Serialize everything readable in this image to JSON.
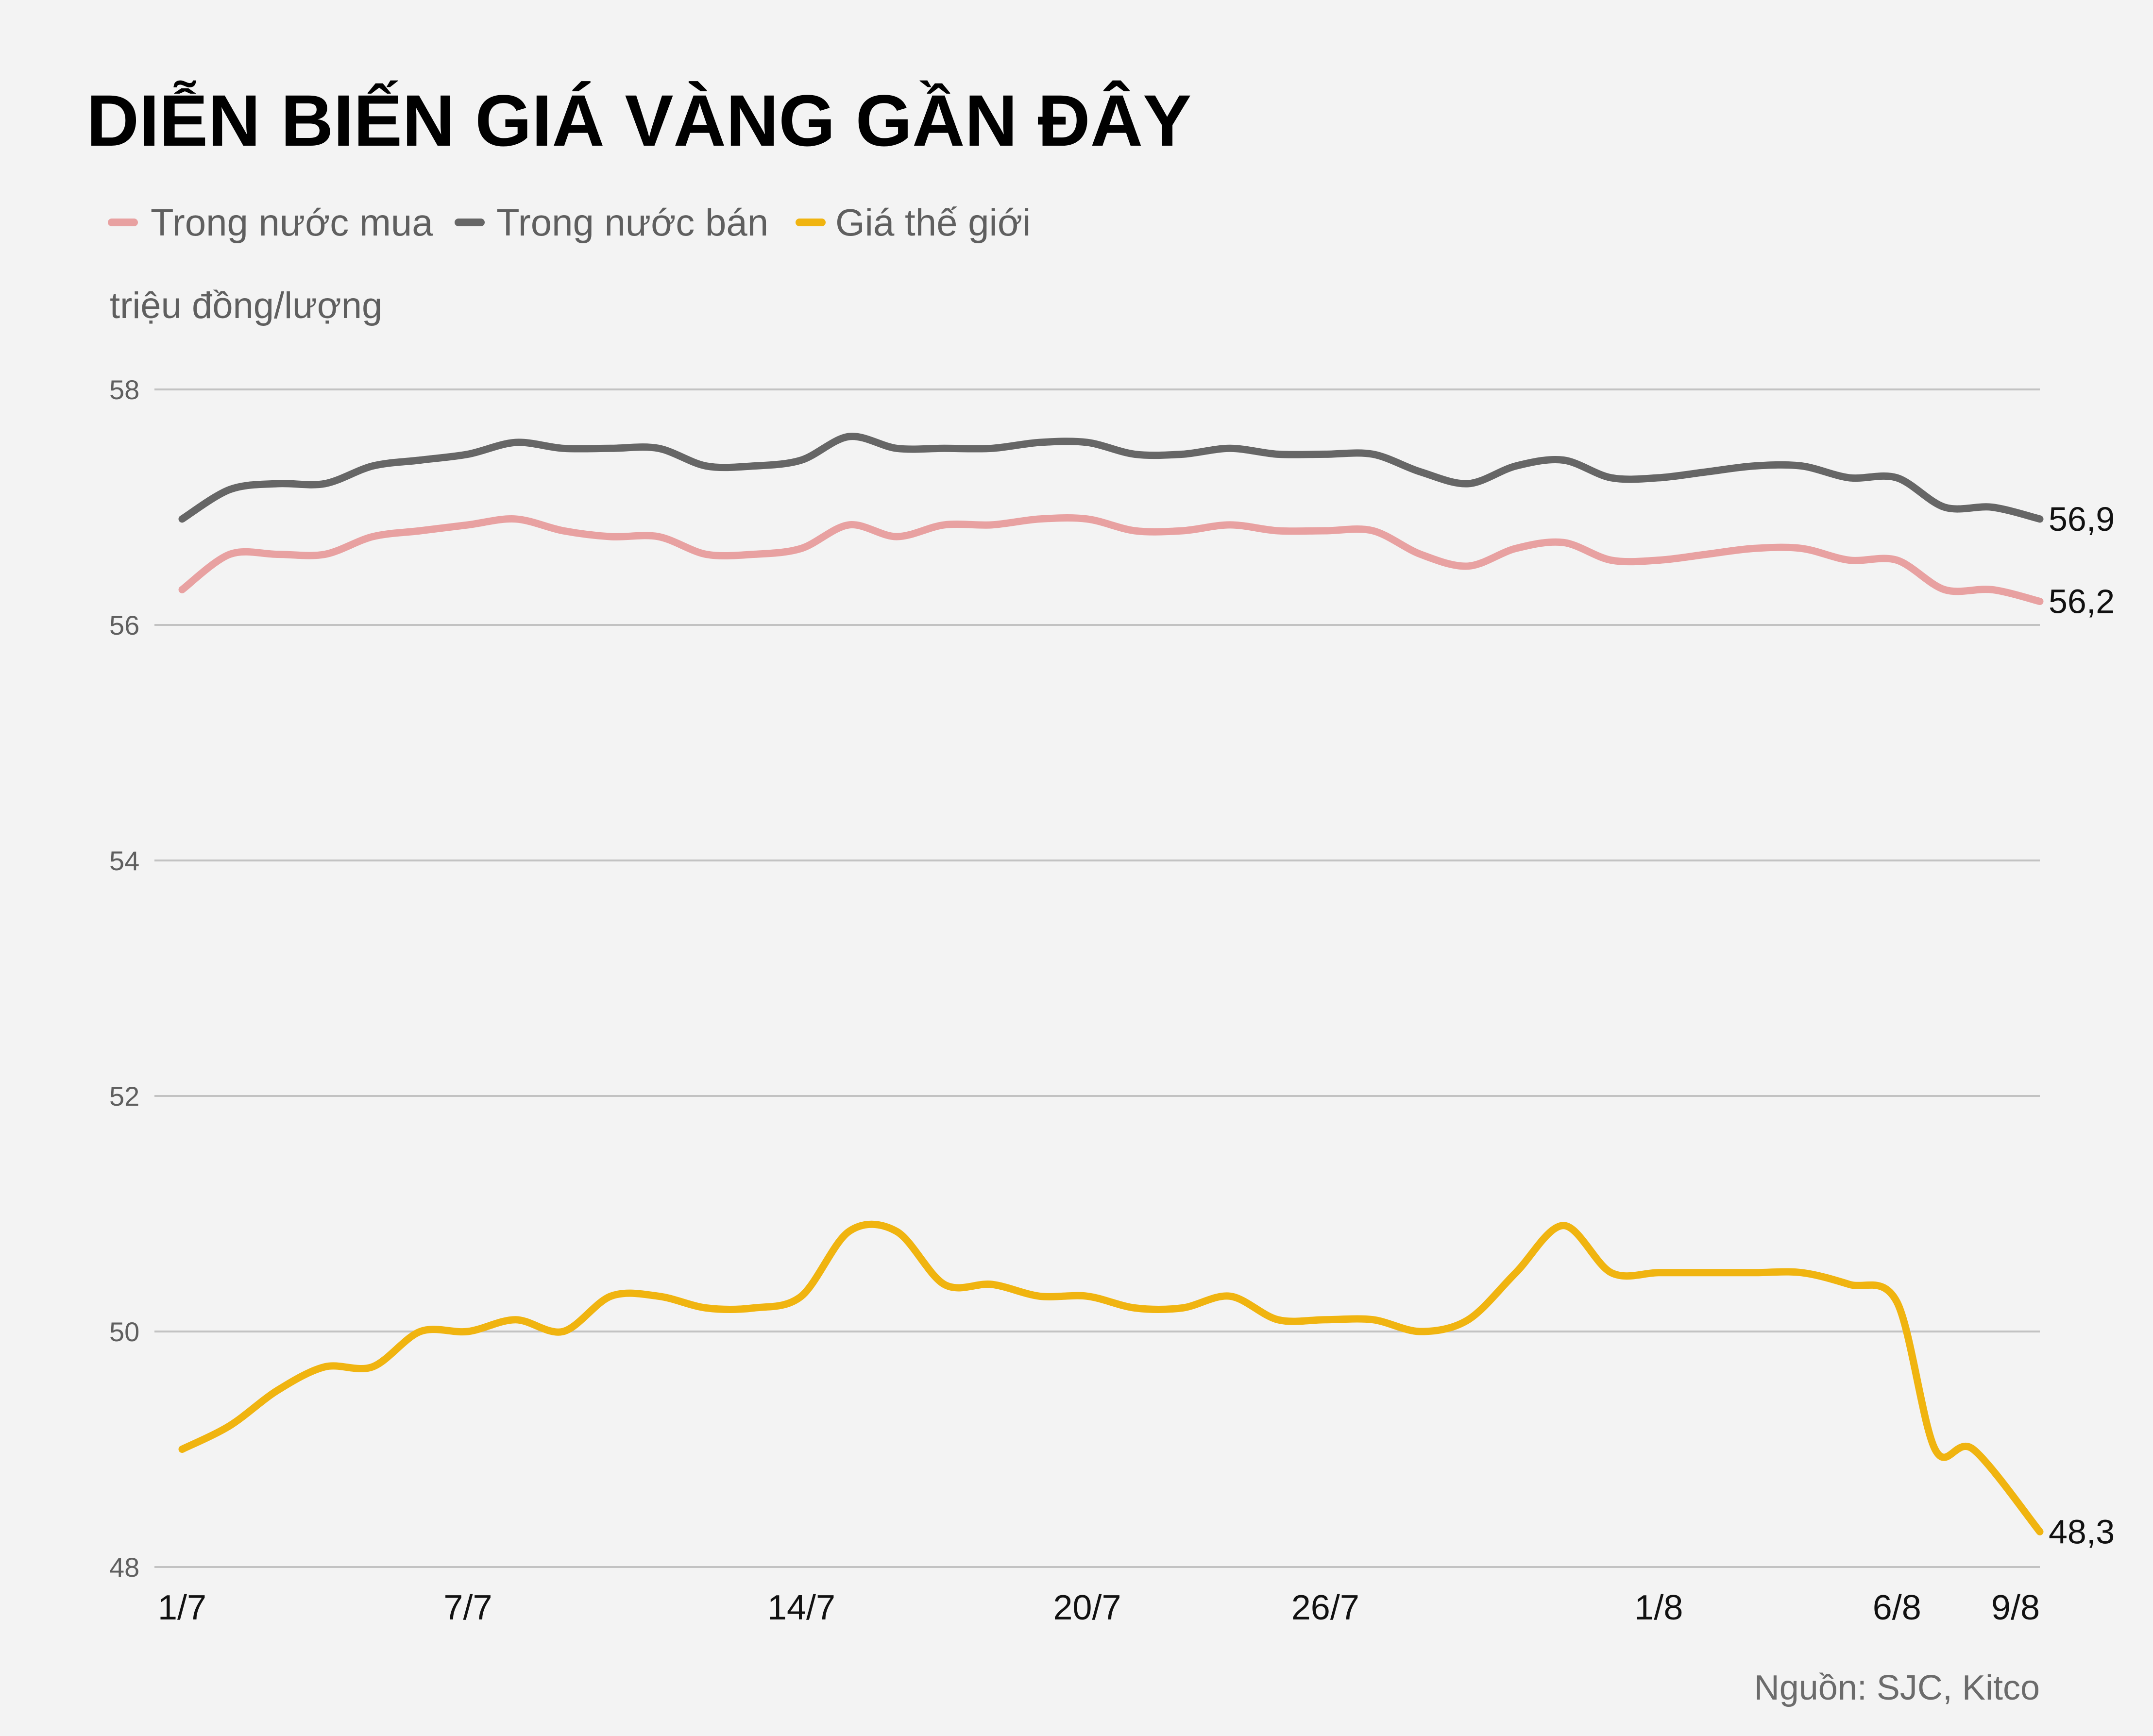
{
  "chart_data": {
    "type": "line",
    "title": "DIỄN BIẾN GIÁ VÀNG GẦN ĐÂY",
    "ylabel": "triệu đồng/lượng",
    "ylim": [
      48,
      58
    ],
    "yticks": [
      "48",
      "50",
      "52",
      "54",
      "56",
      "58"
    ],
    "ytick_values": [
      48,
      50,
      52,
      54,
      56,
      58
    ],
    "grid": true,
    "legend_position": "top-left",
    "x_day_range": [
      0,
      39
    ],
    "xticks": [
      {
        "label": "1/7",
        "day": 0
      },
      {
        "label": "7/7",
        "day": 6
      },
      {
        "label": "14/7",
        "day": 13
      },
      {
        "label": "20/7",
        "day": 19
      },
      {
        "label": "26/7",
        "day": 24
      },
      {
        "label": "1/8",
        "day": 31
      },
      {
        "label": "6/8",
        "day": 36
      },
      {
        "label": "9/8",
        "day": 39
      }
    ],
    "series": [
      {
        "name": "Trong nước mua",
        "color": "#e8a1a1",
        "days": [
          0,
          1,
          2,
          3,
          4,
          5,
          6,
          7,
          8,
          9,
          10,
          11,
          12,
          13,
          14,
          15,
          16,
          17,
          18,
          19,
          20,
          21,
          22,
          23,
          24,
          25,
          26,
          27,
          28,
          29,
          30,
          31,
          32,
          33,
          34,
          35,
          36,
          37,
          38,
          39
        ],
        "values": [
          56.3,
          56.6,
          56.6,
          56.6,
          56.75,
          56.8,
          56.85,
          56.9,
          56.8,
          56.75,
          56.75,
          56.6,
          56.6,
          56.65,
          56.85,
          56.75,
          56.85,
          56.85,
          56.9,
          56.9,
          56.8,
          56.8,
          56.85,
          56.8,
          56.8,
          56.8,
          56.6,
          56.5,
          56.65,
          56.7,
          56.55,
          56.55,
          56.6,
          56.65,
          56.65,
          56.55,
          56.55,
          56.3,
          56.3,
          56.2
        ],
        "end_label": "56,2"
      },
      {
        "name": "Trong nước bán",
        "color": "#666666",
        "days": [
          0,
          1,
          2,
          3,
          4,
          5,
          6,
          7,
          8,
          9,
          10,
          11,
          12,
          13,
          14,
          15,
          16,
          17,
          18,
          19,
          20,
          21,
          22,
          23,
          24,
          25,
          26,
          27,
          28,
          29,
          30,
          31,
          32,
          33,
          34,
          35,
          36,
          37,
          38,
          39
        ],
        "values": [
          56.9,
          57.15,
          57.2,
          57.2,
          57.35,
          57.4,
          57.45,
          57.55,
          57.5,
          57.5,
          57.5,
          57.35,
          57.35,
          57.4,
          57.6,
          57.5,
          57.5,
          57.5,
          57.55,
          57.55,
          57.45,
          57.45,
          57.5,
          57.45,
          57.45,
          57.45,
          57.3,
          57.2,
          57.35,
          57.4,
          57.25,
          57.25,
          57.3,
          57.35,
          57.35,
          57.25,
          57.25,
          57.0,
          57.0,
          56.9
        ],
        "end_label": "56,9"
      },
      {
        "name": "Giá thế giới",
        "color": "#f0b410",
        "days": [
          0,
          1,
          2,
          3,
          4,
          5,
          6,
          7,
          8,
          9,
          10,
          11,
          12,
          13,
          14,
          15,
          16,
          17,
          18,
          19,
          20,
          21,
          22,
          23,
          24,
          25,
          26,
          27,
          28,
          29,
          30,
          31,
          32,
          33,
          34,
          35,
          36,
          36.8,
          37.6,
          39
        ],
        "values": [
          49.0,
          49.2,
          49.5,
          49.7,
          49.7,
          50.0,
          50.0,
          50.1,
          50.0,
          50.3,
          50.3,
          50.2,
          50.2,
          50.3,
          50.85,
          50.85,
          50.4,
          50.4,
          50.3,
          50.3,
          50.2,
          50.2,
          50.3,
          50.1,
          50.1,
          50.1,
          50.0,
          50.1,
          50.5,
          50.9,
          50.5,
          50.5,
          50.5,
          50.5,
          50.5,
          50.4,
          50.25,
          49.0,
          49.0,
          48.3
        ],
        "end_label": "48,3"
      }
    ],
    "source": "Nguồn: SJC, Kitco"
  }
}
